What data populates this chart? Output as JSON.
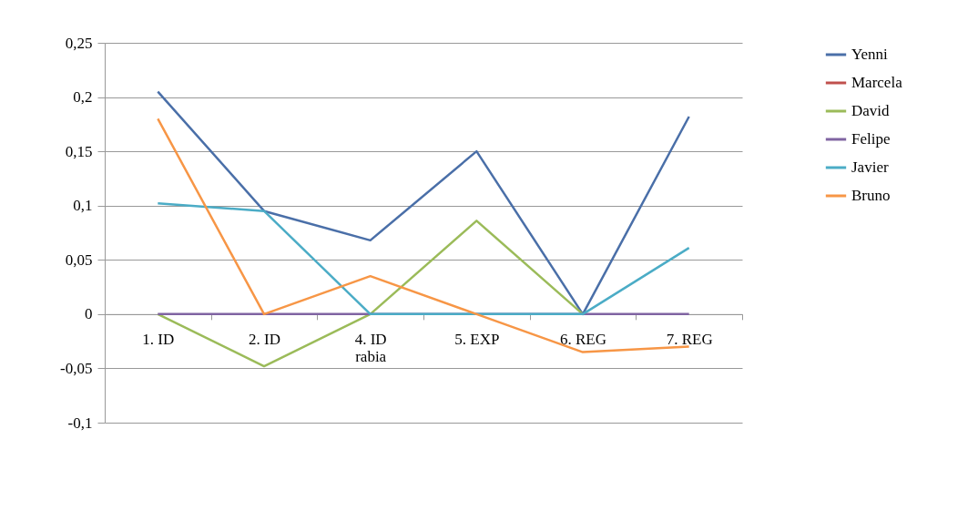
{
  "chart_data": {
    "type": "line",
    "categories": [
      "1. ID",
      "2. ID",
      "4. ID\nrabia",
      "5. EXP",
      "6. REG",
      "7. REG"
    ],
    "series": [
      {
        "name": "Yenni",
        "color": "#4a6fa8",
        "values": [
          0.205,
          0.095,
          0.068,
          0.15,
          0,
          0.182
        ]
      },
      {
        "name": "Marcela",
        "color": "#c0504d",
        "values": [
          null,
          null,
          null,
          null,
          null,
          null
        ]
      },
      {
        "name": "David",
        "color": "#9bbb59",
        "values": [
          0,
          -0.048,
          0,
          0.086,
          0,
          null
        ]
      },
      {
        "name": "Felipe",
        "color": "#8064a2",
        "values": [
          0,
          0,
          0,
          0,
          0,
          0
        ]
      },
      {
        "name": "Javier",
        "color": "#4bacc6",
        "values": [
          0.102,
          0.095,
          0,
          0,
          0,
          0.061
        ]
      },
      {
        "name": "Bruno",
        "color": "#f79646",
        "values": [
          0.18,
          0,
          0.035,
          0,
          -0.035,
          -0.03
        ]
      }
    ],
    "ylim": [
      -0.1,
      0.25
    ],
    "yticks": [
      {
        "value": -0.1,
        "label": "-0,1"
      },
      {
        "value": -0.05,
        "label": "-0,05"
      },
      {
        "value": 0,
        "label": "0"
      },
      {
        "value": 0.05,
        "label": "0,05"
      },
      {
        "value": 0.1,
        "label": "0,1"
      },
      {
        "value": 0.15,
        "label": "0,15"
      },
      {
        "value": 0.2,
        "label": "0,2"
      },
      {
        "value": 0.25,
        "label": "0,25"
      }
    ],
    "grid": "y",
    "legend": "right",
    "marker": "none",
    "line_style": "solid"
  }
}
